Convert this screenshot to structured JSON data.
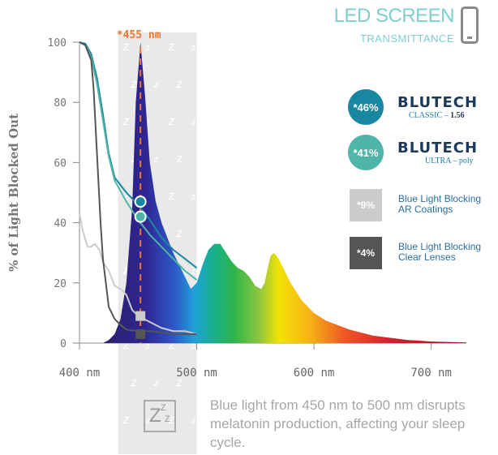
{
  "header": {
    "title": "LED SCREEN",
    "subtitle": "TRANSMITTANCE",
    "device_icon": "smartphone-icon"
  },
  "legend": [
    {
      "badge": "*46%",
      "brand": "BLUTECH",
      "brand_sub_a": "CLASSIC – ",
      "brand_sub_b": "1.56",
      "color": "#1a87a0"
    },
    {
      "badge": "*41%",
      "brand": "BLUTECH",
      "brand_sub_a": "ULTRA – poly",
      "brand_sub_b": "",
      "color": "#4fb5a8"
    },
    {
      "badge": "*9%",
      "line1": "Blue Light Blocking",
      "line2": "AR Coatings",
      "color": "#cccccc"
    },
    {
      "badge": "*4%",
      "line1": "Blue Light Blocking",
      "line2": "Clear Lenses",
      "color": "#555555"
    }
  ],
  "footer": {
    "icon": "sleep-zzz-icon",
    "icon_text": "Z",
    "text": "Blue light from 450 nm to 500 nm disrupts melatonin production, affecting your sleep cycle."
  },
  "chart_data": {
    "type": "line",
    "ylabel": "% of Light Blocked Out",
    "yticks": [
      "0",
      "20",
      "40",
      "60",
      "80",
      "100"
    ],
    "xticks": [
      "400 nm",
      "500 nm",
      "600 nm",
      "700 nm"
    ],
    "xlim": [
      400,
      730
    ],
    "ylim": [
      0,
      100
    ],
    "highlight_band": [
      433,
      500
    ],
    "peak_label": "*455 nm",
    "peak_x": 452,
    "peak_color": "#e8773a",
    "series": [
      {
        "name": "BLUTECH Classic 1.56",
        "color": "#1a87a0",
        "x": [
          400,
          405,
          410,
          415,
          420,
          425,
          430,
          440,
          450,
          460,
          470,
          480,
          490,
          500
        ],
        "y": [
          100,
          99.5,
          96,
          88,
          76,
          63,
          55,
          50,
          46,
          41,
          35,
          31,
          28,
          25
        ]
      },
      {
        "name": "BLUTECH Ultra poly",
        "color": "#4fb5a8",
        "x": [
          400,
          405,
          410,
          415,
          420,
          425,
          430,
          440,
          450,
          460,
          470,
          480,
          490,
          500
        ],
        "y": [
          100,
          99,
          95,
          86,
          74,
          62,
          54,
          47,
          41,
          36,
          32,
          28,
          24,
          21
        ]
      },
      {
        "name": "Blue Light Blocking AR Coatings",
        "color": "#cccccc",
        "x": [
          400,
          403,
          407,
          410,
          413,
          417,
          420,
          425,
          430,
          435,
          440,
          445,
          450,
          460,
          470,
          480,
          490,
          500
        ],
        "y": [
          43,
          37,
          32,
          32,
          33,
          31,
          27,
          24,
          19,
          18,
          16,
          11,
          9,
          7,
          5,
          4,
          4,
          3
        ]
      },
      {
        "name": "Blue Light Blocking Clear Lenses",
        "color": "#555555",
        "x": [
          400,
          405,
          410,
          412,
          414,
          416,
          418,
          420,
          425,
          430,
          435,
          440,
          445,
          450,
          460,
          470,
          480,
          500
        ],
        "y": [
          100,
          99,
          94,
          85,
          70,
          55,
          40,
          28,
          12,
          8,
          6,
          4.5,
          4.2,
          4,
          4,
          3.5,
          3,
          3
        ]
      }
    ],
    "markers": [
      {
        "x": 452,
        "y": 47,
        "style": "circle",
        "color": "#1a87a0"
      },
      {
        "x": 452,
        "y": 42,
        "style": "circle",
        "color": "#4fb5a8"
      },
      {
        "x": 452,
        "y": 9,
        "style": "square",
        "color": "#cccccc"
      },
      {
        "x": 452,
        "y": 3,
        "style": "square",
        "color": "#555555"
      }
    ],
    "spectrum": {
      "x": [
        420,
        425,
        430,
        435,
        440,
        445,
        448,
        452,
        456,
        460,
        465,
        470,
        480,
        490,
        495,
        500,
        505,
        510,
        515,
        520,
        525,
        530,
        535,
        540,
        545,
        550,
        555,
        558,
        560,
        563,
        566,
        570,
        580,
        590,
        600,
        610,
        620,
        630,
        640,
        650,
        660,
        670,
        680,
        690,
        700,
        710,
        720,
        730
      ],
      "y": [
        0,
        1,
        3,
        8,
        20,
        45,
        80,
        100,
        82,
        60,
        47,
        40,
        30,
        22,
        18,
        20,
        26,
        31,
        33,
        33,
        30,
        27,
        25,
        24,
        22,
        19,
        18,
        20,
        24,
        29,
        30,
        28,
        20,
        14,
        10,
        7.5,
        6,
        4.5,
        3.5,
        2.5,
        2,
        1.5,
        1,
        0.8,
        0.5,
        0.4,
        0.3,
        0.2
      ]
    }
  }
}
